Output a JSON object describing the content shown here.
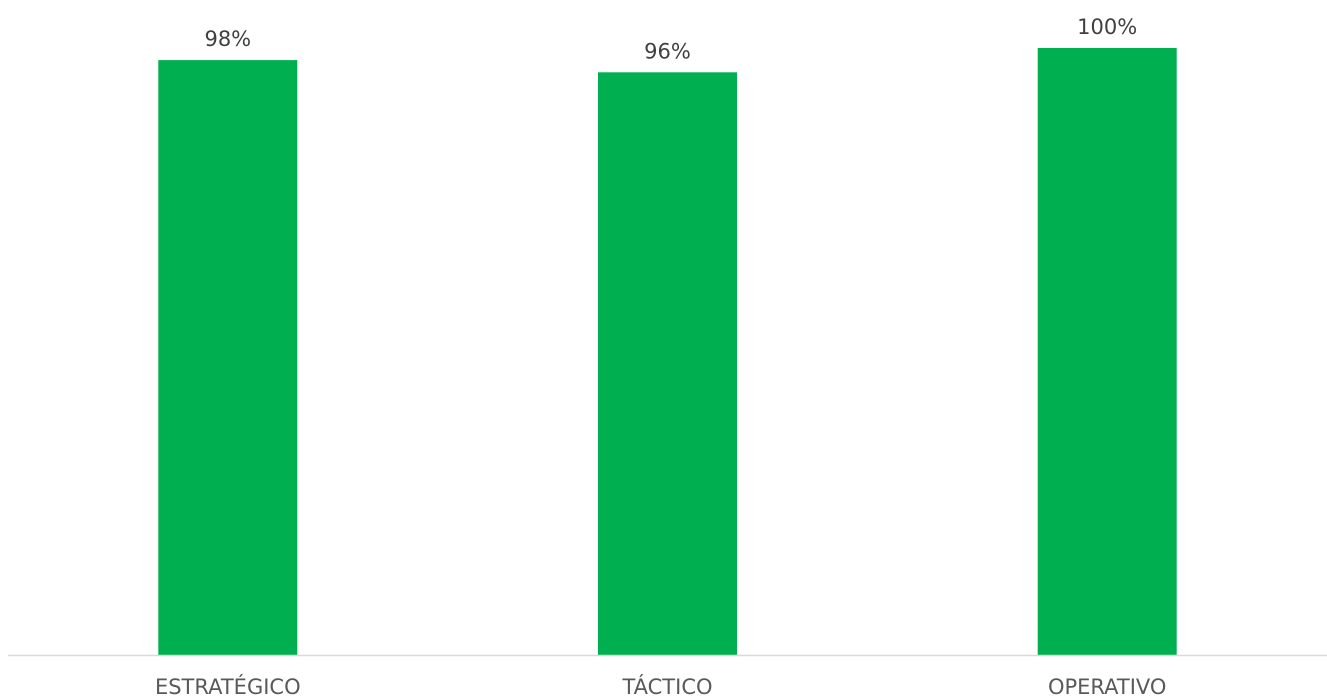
{
  "chart_data": {
    "type": "bar",
    "categories": [
      "ESTRATÉGICO",
      "TÁCTICO",
      "OPERATIVO"
    ],
    "values": [
      98,
      96,
      100
    ],
    "data_labels": [
      "98%",
      "96%",
      "100%"
    ],
    "value_unit": "%",
    "ylim": [
      0,
      100
    ],
    "grid": false,
    "legend": "none",
    "y_axis_visible": false,
    "colors": {
      "bar": "#00B050",
      "axis": "#D9D9D9",
      "data_label": "#404040",
      "tick_label": "#595959"
    }
  }
}
